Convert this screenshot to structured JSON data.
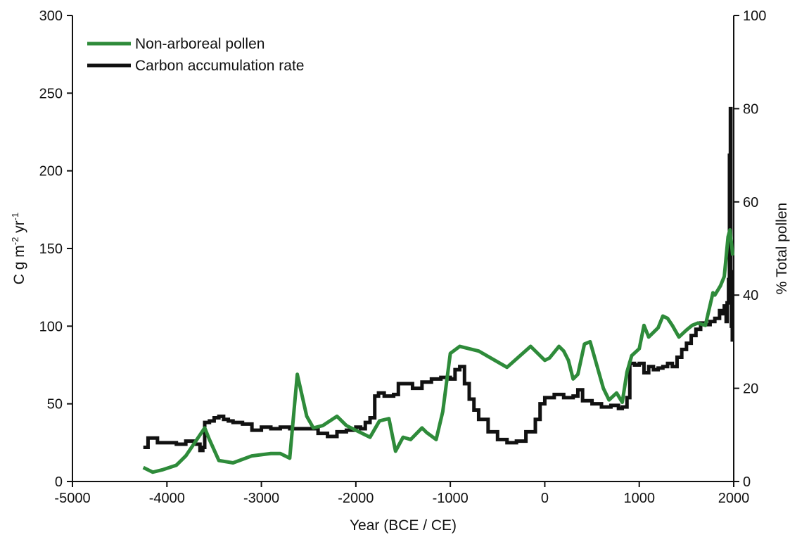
{
  "chart_data": {
    "type": "line",
    "xlabel": "Year (BCE / CE)",
    "ylabel_left": {
      "main": "C g m",
      "sup1": "-2",
      "mid": " yr",
      "sup2": "-1"
    },
    "ylabel_right": "% Total pollen",
    "xlim": [
      -5000,
      2000
    ],
    "ylim_left": [
      0,
      300
    ],
    "ylim_right": [
      0,
      100
    ],
    "x_ticks": [
      -5000,
      -4000,
      -3000,
      -2000,
      -1000,
      0,
      1000,
      2000
    ],
    "x_tick_labels": [
      "-5000",
      "-4000",
      "-3000",
      "-2000",
      "-1000",
      "0",
      "1000",
      "2000"
    ],
    "y_left_ticks": [
      0,
      50,
      100,
      150,
      200,
      250,
      300
    ],
    "y_left_tick_labels": [
      "0",
      "50",
      "100",
      "150",
      "200",
      "250",
      "300"
    ],
    "y_right_ticks": [
      0,
      20,
      40,
      60,
      80,
      100
    ],
    "y_right_tick_labels": [
      "0",
      "20",
      "40",
      "60",
      "80",
      "100"
    ],
    "grid": false,
    "legend_position": "top-left",
    "series": [
      {
        "name": "Non-arboreal pollen",
        "axis": "right",
        "color": "#2e8b3a",
        "x": [
          -4250,
          -4150,
          -4050,
          -3900,
          -3800,
          -3700,
          -3600,
          -3550,
          -3450,
          -3300,
          -3100,
          -2900,
          -2800,
          -2700,
          -2620,
          -2520,
          -2450,
          -2350,
          -2200,
          -2100,
          -1950,
          -1850,
          -1750,
          -1650,
          -1580,
          -1500,
          -1420,
          -1300,
          -1250,
          -1150,
          -1080,
          -1000,
          -900,
          -700,
          -400,
          -150,
          -50,
          0,
          50,
          150,
          200,
          250,
          300,
          350,
          420,
          480,
          550,
          620,
          680,
          760,
          820,
          870,
          920,
          1000,
          1050,
          1100,
          1150,
          1200,
          1250,
          1300,
          1350,
          1420,
          1500,
          1560,
          1620,
          1700,
          1780,
          1800,
          1860,
          1900,
          1940,
          1960,
          1990
        ],
        "y": [
          3,
          2,
          2.5,
          3.5,
          5.5,
          8.5,
          11.5,
          9,
          4.5,
          4,
          5.5,
          6,
          6,
          5,
          23,
          14,
          11.5,
          12,
          14,
          12,
          10.5,
          9.5,
          13,
          13.5,
          6.5,
          9.5,
          9,
          11.5,
          10.5,
          9,
          15,
          27.5,
          29,
          28,
          24.5,
          29,
          27,
          26,
          26.5,
          29,
          28,
          26,
          22,
          23,
          29.5,
          30,
          25,
          20,
          17.5,
          19,
          17,
          23.5,
          27,
          28.5,
          33.5,
          31,
          32,
          33,
          35.5,
          35,
          33.5,
          31,
          32.5,
          33.5,
          34,
          33.5,
          40.5,
          40,
          42,
          44,
          52.5,
          54,
          48.5
        ]
      },
      {
        "name": "Carbon accumulation rate",
        "axis": "left",
        "color": "#111111",
        "x": [
          -4250,
          -4200,
          -4100,
          -4000,
          -3900,
          -3800,
          -3700,
          -3650,
          -3620,
          -3600,
          -3550,
          -3500,
          -3450,
          -3400,
          -3350,
          -3300,
          -3200,
          -3100,
          -3000,
          -2900,
          -2800,
          -2700,
          -2600,
          -2500,
          -2400,
          -2300,
          -2200,
          -2100,
          -2000,
          -1950,
          -1900,
          -1850,
          -1800,
          -1760,
          -1700,
          -1600,
          -1550,
          -1500,
          -1400,
          -1300,
          -1200,
          -1100,
          -1000,
          -950,
          -900,
          -850,
          -800,
          -750,
          -700,
          -600,
          -500,
          -400,
          -300,
          -200,
          -100,
          -50,
          0,
          50,
          100,
          200,
          300,
          350,
          400,
          500,
          600,
          700,
          780,
          820,
          870,
          900,
          950,
          1000,
          1050,
          1100,
          1150,
          1200,
          1250,
          1300,
          1350,
          1400,
          1450,
          1500,
          1550,
          1600,
          1650,
          1700,
          1750,
          1800,
          1850,
          1880,
          1900,
          1920,
          1930,
          1945,
          1955,
          1960,
          1965,
          1970,
          1975,
          1985
        ],
        "y": [
          22,
          28,
          25,
          25,
          24,
          26,
          24,
          20,
          22,
          38,
          39,
          41,
          42,
          40,
          39,
          38,
          37,
          33,
          35,
          34,
          35,
          34,
          34,
          34,
          31,
          29,
          32,
          33,
          35,
          34,
          38,
          41,
          55,
          57,
          55,
          56,
          63,
          63,
          60,
          64,
          66,
          67,
          66,
          72,
          74,
          63,
          53,
          46,
          40,
          32,
          27,
          25,
          26,
          32,
          40,
          50,
          54,
          54,
          56,
          54,
          55,
          59,
          52,
          50,
          48,
          49,
          47,
          48,
          54,
          76,
          75,
          76,
          70,
          74,
          72,
          73,
          74,
          76,
          74,
          80,
          85,
          89,
          94,
          98,
          102,
          101,
          103,
          105,
          110,
          108,
          113,
          103,
          115,
          130,
          210,
          160,
          240,
          135,
          100,
          90
        ]
      }
    ]
  }
}
